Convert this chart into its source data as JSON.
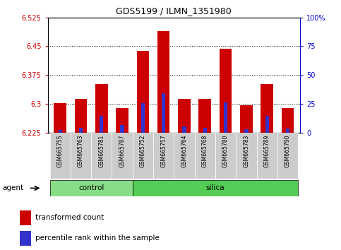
{
  "title": "GDS5199 / ILMN_1351980",
  "samples": [
    "GSM665755",
    "GSM665763",
    "GSM665781",
    "GSM665787",
    "GSM665752",
    "GSM665757",
    "GSM665764",
    "GSM665768",
    "GSM665780",
    "GSM665783",
    "GSM665789",
    "GSM665790"
  ],
  "groups": [
    "control",
    "control",
    "control",
    "control",
    "silica",
    "silica",
    "silica",
    "silica",
    "silica",
    "silica",
    "silica",
    "silica"
  ],
  "red_values": [
    6.302,
    6.312,
    6.352,
    6.288,
    6.438,
    6.49,
    6.312,
    6.312,
    6.443,
    6.297,
    6.352,
    6.288
  ],
  "blue_values": [
    6.232,
    6.238,
    6.268,
    6.245,
    6.302,
    6.328,
    6.24,
    6.238,
    6.303,
    6.234,
    6.268,
    6.235
  ],
  "ymin": 6.225,
  "ymax": 6.525,
  "yticks": [
    6.225,
    6.3,
    6.375,
    6.45,
    6.525
  ],
  "ytick_labels": [
    "6.225",
    "6.3",
    "6.375",
    "6.45",
    "6.525"
  ],
  "right_yticks": [
    0,
    25,
    50,
    75,
    100
  ],
  "bar_width": 0.6,
  "bar_color_red": "#cc0000",
  "bar_color_blue": "#3333cc",
  "control_color": "#88dd88",
  "silica_color": "#55cc55",
  "sample_bg_color": "#cccccc",
  "left_axis_color": "#cc0000",
  "right_axis_color": "#0000cc",
  "n_control": 4,
  "n_silica": 8
}
